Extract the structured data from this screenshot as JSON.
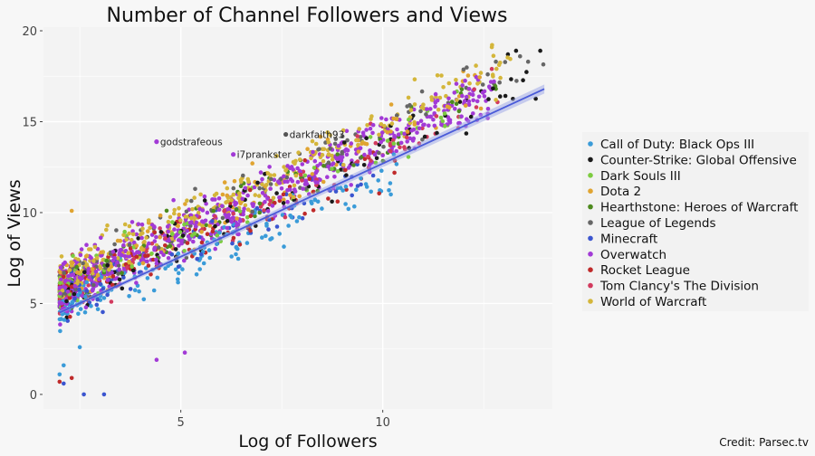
{
  "chart_data": {
    "type": "scatter",
    "title": "Number of Channel Followers and Views",
    "xlabel": "Log of Followers",
    "ylabel": "Log of Views",
    "xlim": [
      1.6,
      14.2
    ],
    "ylim": [
      -0.8,
      20.2
    ],
    "x_ticks": [
      5,
      10
    ],
    "y_ticks": [
      0,
      5,
      10,
      15,
      20
    ],
    "grid": true,
    "legend_position": "right",
    "credit": "Credit: Parsec.tv",
    "trend_line": {
      "x": [
        2,
        14
      ],
      "y": [
        4.5,
        16.8
      ],
      "color": "#4a5bd8"
    },
    "annotations": [
      {
        "label": "godstrafeous",
        "x": 4.4,
        "y": 13.9,
        "color": "#a23ad6"
      },
      {
        "label": "i7prankster",
        "x": 6.3,
        "y": 13.2,
        "color": "#a23ad6"
      },
      {
        "label": "darkfaith93",
        "x": 7.6,
        "y": 14.3,
        "color": "#555555"
      }
    ],
    "series": [
      {
        "name": "Call of Duty: Black Ops III",
        "color": "#3a9bd8",
        "x_range": [
          2.0,
          10.5
        ],
        "slope": 0.88,
        "intercept": 3.0,
        "noise": 1.4,
        "count": 170,
        "points": [
          [
            2.0,
            1.1
          ],
          [
            2.1,
            1.6
          ],
          [
            2.5,
            2.6
          ],
          [
            10.2,
            11.0
          ]
        ]
      },
      {
        "name": "Counter-Strike: Global Offensive",
        "color": "#1a1a1a",
        "x_range": [
          2.0,
          14.0
        ],
        "slope": 1.05,
        "intercept": 3.2,
        "noise": 1.5,
        "count": 110,
        "points": [
          [
            13.9,
            18.9
          ],
          [
            13.3,
            18.9
          ],
          [
            13.1,
            18.7
          ]
        ]
      },
      {
        "name": "Dark Souls III",
        "color": "#7dcc40",
        "x_range": [
          2.0,
          12.0
        ],
        "slope": 1.0,
        "intercept": 3.6,
        "noise": 1.5,
        "count": 80,
        "points": []
      },
      {
        "name": "Dota 2",
        "color": "#e0a431",
        "x_range": [
          2.0,
          12.5
        ],
        "slope": 1.05,
        "intercept": 3.9,
        "noise": 1.5,
        "count": 130,
        "points": [
          [
            2.3,
            10.1
          ]
        ]
      },
      {
        "name": "Hearthstone: Heroes of Warcraft",
        "color": "#4d8a1e",
        "x_range": [
          2.0,
          12.8
        ],
        "slope": 1.02,
        "intercept": 3.8,
        "noise": 1.5,
        "count": 70,
        "points": [
          [
            12.8,
            16.8
          ]
        ]
      },
      {
        "name": "League of Legends",
        "color": "#666666",
        "x_range": [
          2.0,
          14.0
        ],
        "slope": 1.08,
        "intercept": 3.7,
        "noise": 1.6,
        "count": 120,
        "points": [
          [
            13.4,
            18.6
          ],
          [
            12.8,
            18.3
          ],
          [
            13.6,
            18.3
          ],
          [
            12.6,
            17.6
          ],
          [
            7.6,
            14.3
          ]
        ]
      },
      {
        "name": "Minecraft",
        "color": "#3b55cf",
        "x_range": [
          2.0,
          10.0
        ],
        "slope": 0.92,
        "intercept": 3.3,
        "noise": 1.4,
        "count": 90,
        "points": [
          [
            3.1,
            0.0
          ],
          [
            2.6,
            0.0
          ],
          [
            2.1,
            0.6
          ]
        ]
      },
      {
        "name": "Overwatch",
        "color": "#a23ad6",
        "x_range": [
          2.0,
          12.8
        ],
        "slope": 1.03,
        "intercept": 3.7,
        "noise": 1.6,
        "count": 650,
        "points": [
          [
            4.4,
            13.9
          ],
          [
            6.3,
            13.2
          ],
          [
            5.1,
            2.3
          ],
          [
            4.4,
            1.9
          ],
          [
            12.6,
            15.2
          ]
        ]
      },
      {
        "name": "Rocket League",
        "color": "#bf2a2a",
        "x_range": [
          2.0,
          11.0
        ],
        "slope": 0.95,
        "intercept": 3.5,
        "noise": 1.5,
        "count": 120,
        "points": [
          [
            2.0,
            0.7
          ],
          [
            2.3,
            0.9
          ]
        ]
      },
      {
        "name": "Tom Clancy's The Division",
        "color": "#d23a5e",
        "x_range": [
          2.0,
          13.0
        ],
        "slope": 1.0,
        "intercept": 3.5,
        "noise": 1.5,
        "count": 90,
        "points": [
          [
            12.7,
            17.9
          ]
        ]
      },
      {
        "name": "World of Warcraft",
        "color": "#d4b63a",
        "x_range": [
          2.0,
          13.2
        ],
        "slope": 1.08,
        "intercept": 4.1,
        "noise": 1.4,
        "count": 300,
        "points": [
          [
            12.8,
            16.2
          ],
          [
            11.5,
            16.9
          ]
        ]
      }
    ]
  }
}
